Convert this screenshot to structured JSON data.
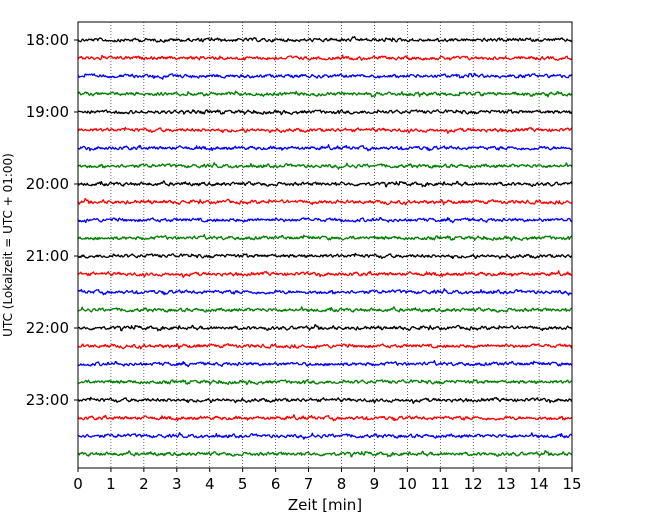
{
  "chart_data": {
    "type": "line",
    "title": "",
    "xlabel": "Zeit  [min]",
    "ylabel": "UTC (Lokalzeit = UTC + 01:00)",
    "xlim": [
      0,
      15
    ],
    "x_ticks": [
      "0",
      "1",
      "2",
      "3",
      "4",
      "5",
      "6",
      "7",
      "8",
      "9",
      "10",
      "11",
      "12",
      "13",
      "14",
      "15"
    ],
    "y_ticks": [
      "18:00",
      "19:00",
      "20:00",
      "21:00",
      "22:00",
      "23:00"
    ],
    "grid": {
      "vertical_dotted": true,
      "horizontal": false
    },
    "legend": "none",
    "trace_interval_minutes": 15,
    "trace_colors": [
      "#000000",
      "#ff0000",
      "#0000ff",
      "#007f00"
    ],
    "series": [
      {
        "start": "18:00",
        "color_index": 0
      },
      {
        "start": "18:15",
        "color_index": 1
      },
      {
        "start": "18:30",
        "color_index": 2
      },
      {
        "start": "18:45",
        "color_index": 3
      },
      {
        "start": "19:00",
        "color_index": 0
      },
      {
        "start": "19:15",
        "color_index": 1
      },
      {
        "start": "19:30",
        "color_index": 2
      },
      {
        "start": "19:45",
        "color_index": 3
      },
      {
        "start": "20:00",
        "color_index": 0
      },
      {
        "start": "20:15",
        "color_index": 1
      },
      {
        "start": "20:30",
        "color_index": 2
      },
      {
        "start": "20:45",
        "color_index": 3
      },
      {
        "start": "21:00",
        "color_index": 0
      },
      {
        "start": "21:15",
        "color_index": 1
      },
      {
        "start": "21:30",
        "color_index": 2
      },
      {
        "start": "21:45",
        "color_index": 3
      },
      {
        "start": "22:00",
        "color_index": 0
      },
      {
        "start": "22:15",
        "color_index": 1
      },
      {
        "start": "22:30",
        "color_index": 2
      },
      {
        "start": "22:45",
        "color_index": 3
      },
      {
        "start": "23:00",
        "color_index": 0
      },
      {
        "start": "23:15",
        "color_index": 1
      },
      {
        "start": "23:30",
        "color_index": 2
      },
      {
        "start": "23:45",
        "color_index": 3
      }
    ]
  }
}
